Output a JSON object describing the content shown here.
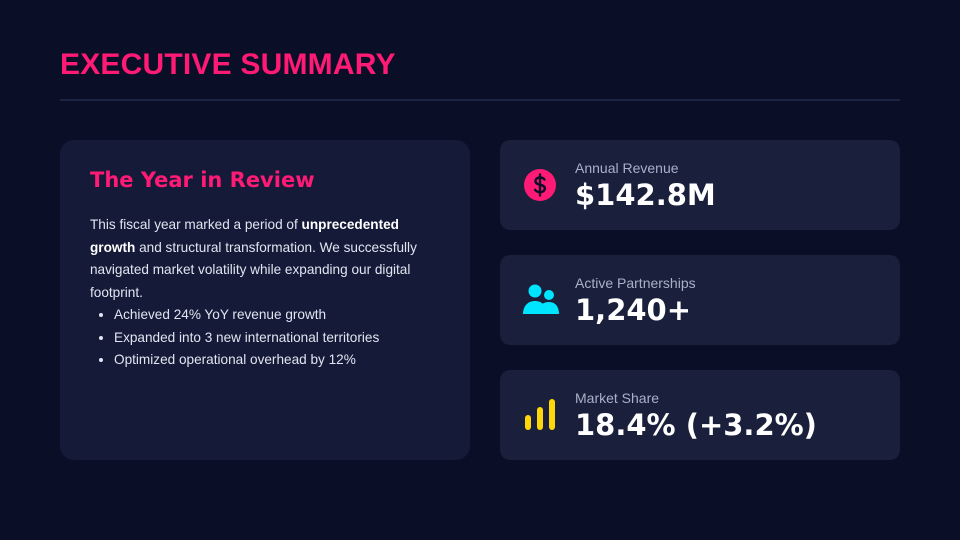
{
  "header": {
    "title": "EXECUTIVE SUMMARY"
  },
  "review": {
    "title": "The Year in Review",
    "paragraph": {
      "before": "This fiscal year marked a period of ",
      "bold": "unprecedented growth",
      "after": " and structural transformation. We successfully navigated market volatility while expanding our digital footprint."
    },
    "bullets": [
      "Achieved 24% YoY revenue growth",
      "Expanded into 3 new international territories",
      "Optimized operational overhead by 12%"
    ]
  },
  "metrics": [
    {
      "label": "Annual Revenue",
      "value": "$142.8M"
    },
    {
      "label": "Active Partnerships",
      "value": "1,240+"
    },
    {
      "label": "Market Share",
      "value": "18.4% (+3.2%)"
    }
  ]
}
